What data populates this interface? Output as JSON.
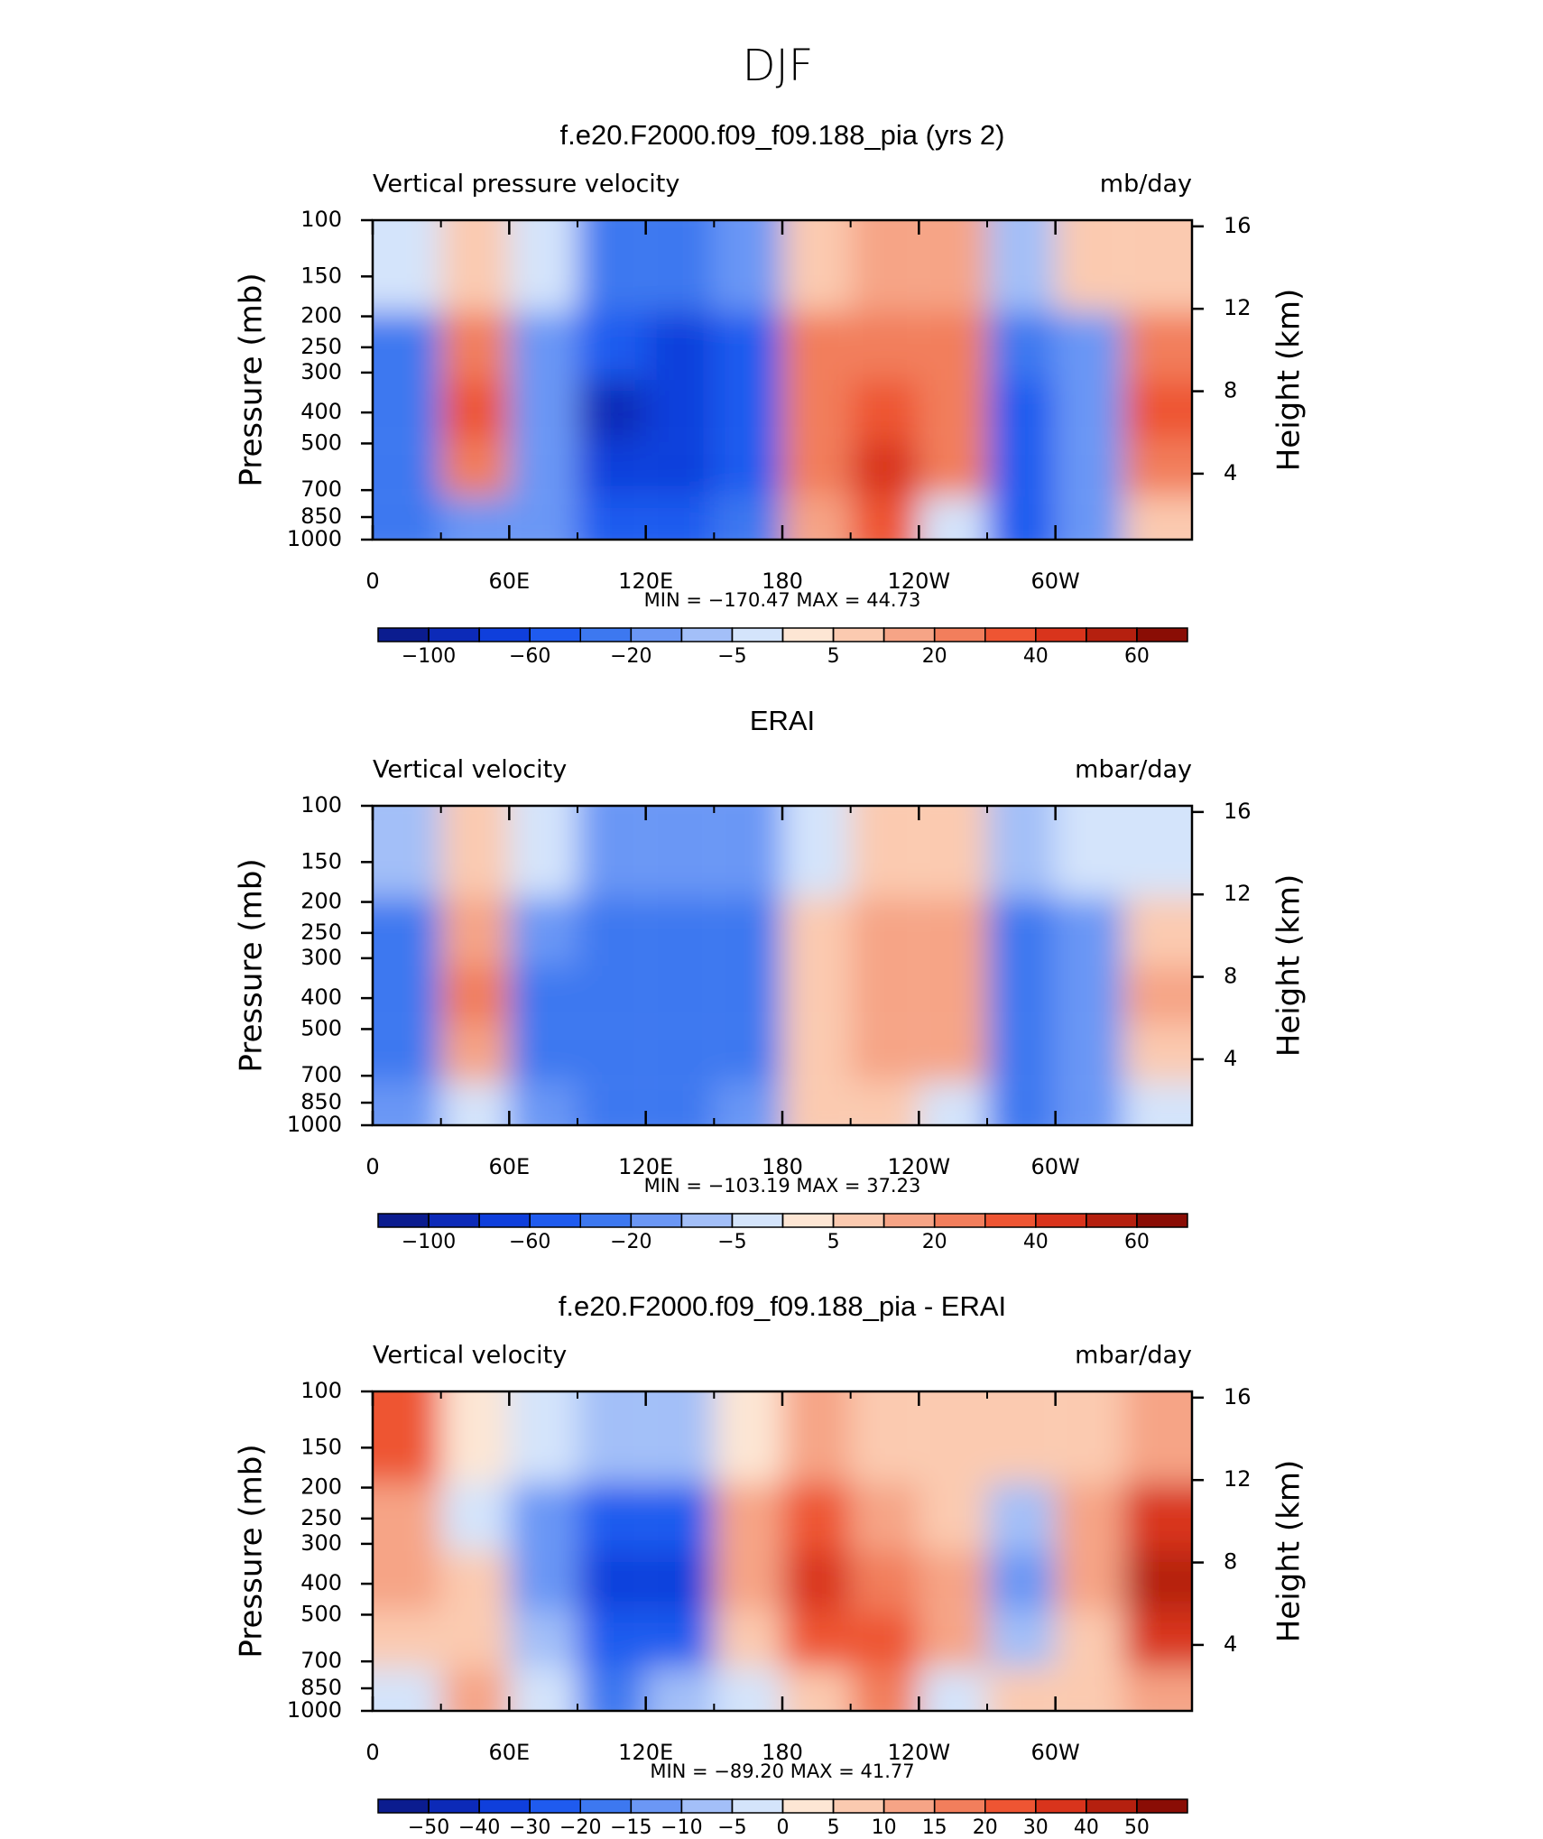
{
  "title": "DJF",
  "chart_data": [
    {
      "type": "contour",
      "title": "f.e20.F2000.f09_f09.188_pia (yrs 2)",
      "left_label": "Vertical pressure velocity",
      "right_label": "mb/day",
      "min_max": "MIN = −170.47   MAX =   44.73",
      "y_label": "Pressure (mb)",
      "y2_label": "Height (km)",
      "xlim": [
        0,
        360
      ],
      "xticks": [
        0,
        {
          "value": 60,
          "label": "60E"
        },
        {
          "value": 120,
          "label": "120E"
        },
        180,
        {
          "value": 240,
          "label": "120W"
        },
        {
          "value": 300,
          "label": "60W"
        }
      ],
      "ylim": [
        1000,
        100
      ],
      "y_scale": "log",
      "yticks": [
        100,
        150,
        200,
        250,
        300,
        400,
        500,
        700,
        850,
        1000
      ],
      "y2lim": [
        0.8,
        16.3
      ],
      "y2ticks": [
        4,
        8,
        12,
        16
      ],
      "field": {
        "lon": [
          15,
          45,
          75,
          105,
          135,
          165,
          195,
          225,
          255,
          285,
          315,
          345
        ],
        "pressure": [
          150,
          250,
          400,
          600,
          900
        ],
        "values": [
          [
            -5,
            -30,
            -40,
            -40,
            -40
          ],
          [
            5,
            20,
            30,
            20,
            -20
          ],
          [
            -5,
            -20,
            -20,
            -20,
            -20
          ],
          [
            -30,
            -60,
            -90,
            -70,
            -50
          ],
          [
            -40,
            -70,
            -80,
            -70,
            -50
          ],
          [
            -20,
            -50,
            -60,
            -50,
            -30
          ],
          [
            5,
            20,
            20,
            20,
            10
          ],
          [
            10,
            20,
            30,
            40,
            30
          ],
          [
            10,
            20,
            20,
            20,
            -5
          ],
          [
            -10,
            -40,
            -50,
            -50,
            -50
          ],
          [
            5,
            -20,
            -20,
            -20,
            -20
          ],
          [
            5,
            20,
            30,
            20,
            5
          ]
        ]
      },
      "colorbar": {
        "levels": [
          -100,
          -80,
          -60,
          -40,
          -20,
          -10,
          -5,
          0,
          5,
          10,
          20,
          30,
          40,
          50,
          60
        ],
        "colors": [
          "#0b1c8f",
          "#0c2ab8",
          "#0f3fdc",
          "#1f5bef",
          "#3d78f0",
          "#6b97f5",
          "#a3bff8",
          "#d4e4fb",
          "#fde6d4",
          "#fbcab0",
          "#f6a486",
          "#f27e5c",
          "#ee5533",
          "#d9341c",
          "#b5200f",
          "#8a0d05"
        ],
        "ticks": [
          {
            "value": -100,
            "label": "−100"
          },
          {
            "value": -60,
            "label": "−60"
          },
          {
            "value": -20,
            "label": "−20"
          },
          {
            "value": -5,
            "label": "−5"
          },
          5,
          20,
          40,
          60
        ]
      }
    },
    {
      "type": "contour",
      "title": "ERAI",
      "left_label": "Vertical velocity",
      "right_label": "mbar/day",
      "min_max": "MIN = −103.19   MAX =   37.23",
      "y_label": "Pressure (mb)",
      "y2_label": "Height (km)",
      "xlim": [
        0,
        360
      ],
      "xticks": [
        0,
        {
          "value": 60,
          "label": "60E"
        },
        {
          "value": 120,
          "label": "120E"
        },
        180,
        {
          "value": 240,
          "label": "120W"
        },
        {
          "value": 300,
          "label": "60W"
        }
      ],
      "ylim": [
        1000,
        100
      ],
      "y_scale": "log",
      "yticks": [
        100,
        150,
        200,
        250,
        300,
        400,
        500,
        700,
        850,
        1000
      ],
      "y2lim": [
        0.8,
        16.3
      ],
      "y2ticks": [
        4,
        8,
        12,
        16
      ],
      "field": {
        "lon": [
          15,
          45,
          75,
          105,
          135,
          165,
          195,
          225,
          255,
          285,
          315,
          345
        ],
        "pressure": [
          150,
          250,
          400,
          600,
          900
        ],
        "values": [
          [
            -10,
            -30,
            -30,
            -30,
            -20
          ],
          [
            5,
            10,
            20,
            10,
            -5
          ],
          [
            -5,
            -20,
            -30,
            -30,
            -20
          ],
          [
            -20,
            -30,
            -40,
            -40,
            -30
          ],
          [
            -20,
            -40,
            -40,
            -40,
            -30
          ],
          [
            -20,
            -30,
            -30,
            -30,
            -20
          ],
          [
            -5,
            5,
            5,
            5,
            5
          ],
          [
            5,
            10,
            10,
            10,
            5
          ],
          [
            5,
            10,
            10,
            10,
            -5
          ],
          [
            -10,
            -30,
            -30,
            -30,
            -30
          ],
          [
            -5,
            -20,
            -20,
            -20,
            -20
          ],
          [
            -5,
            5,
            10,
            5,
            -5
          ]
        ]
      },
      "colorbar": {
        "levels": [
          -100,
          -80,
          -60,
          -40,
          -20,
          -10,
          -5,
          0,
          5,
          10,
          20,
          30,
          40,
          50,
          60
        ],
        "colors": [
          "#0b1c8f",
          "#0c2ab8",
          "#0f3fdc",
          "#1f5bef",
          "#3d78f0",
          "#6b97f5",
          "#a3bff8",
          "#d4e4fb",
          "#fde6d4",
          "#fbcab0",
          "#f6a486",
          "#f27e5c",
          "#ee5533",
          "#d9341c",
          "#b5200f",
          "#8a0d05"
        ],
        "ticks": [
          {
            "value": -100,
            "label": "−100"
          },
          {
            "value": -60,
            "label": "−60"
          },
          {
            "value": -20,
            "label": "−20"
          },
          {
            "value": -5,
            "label": "−5"
          },
          5,
          20,
          40,
          60
        ]
      }
    },
    {
      "type": "contour",
      "title": "f.e20.F2000.f09_f09.188_pia - ERAI",
      "left_label": "Vertical velocity",
      "right_label": "mbar/day",
      "min_max": "MIN = −89.20   MAX =   41.77",
      "y_label": "Pressure (mb)",
      "y2_label": "Height (km)",
      "xlim": [
        0,
        360
      ],
      "xticks": [
        0,
        {
          "value": 60,
          "label": "60E"
        },
        {
          "value": 120,
          "label": "120E"
        },
        180,
        {
          "value": 240,
          "label": "120W"
        },
        {
          "value": 300,
          "label": "60W"
        }
      ],
      "ylim": [
        1000,
        100
      ],
      "y_scale": "log",
      "yticks": [
        100,
        150,
        200,
        250,
        300,
        400,
        500,
        700,
        850,
        1000
      ],
      "y2lim": [
        0.8,
        16.3
      ],
      "y2ticks": [
        4,
        8,
        12,
        16
      ],
      "field": {
        "lon": [
          15,
          45,
          75,
          105,
          135,
          165,
          195,
          225,
          255,
          285,
          315,
          345
        ],
        "pressure": [
          150,
          250,
          400,
          600,
          900
        ],
        "values": [
          [
            20,
            10,
            10,
            5,
            -5
          ],
          [
            0,
            -5,
            5,
            5,
            10
          ],
          [
            -5,
            -15,
            -15,
            -10,
            -5
          ],
          [
            -10,
            -30,
            -40,
            -30,
            -20
          ],
          [
            -10,
            -30,
            -40,
            -30,
            -10
          ],
          [
            0,
            10,
            10,
            5,
            -5
          ],
          [
            10,
            20,
            30,
            20,
            5
          ],
          [
            5,
            10,
            15,
            20,
            15
          ],
          [
            5,
            5,
            10,
            10,
            -5
          ],
          [
            5,
            -10,
            -15,
            -10,
            5
          ],
          [
            5,
            10,
            10,
            5,
            5
          ],
          [
            10,
            30,
            40,
            30,
            10
          ]
        ]
      },
      "colorbar": {
        "levels": [
          -50,
          -40,
          -30,
          -20,
          -15,
          -10,
          -5,
          0,
          5,
          10,
          15,
          20,
          30,
          40,
          50
        ],
        "colors": [
          "#0b1c8f",
          "#0c2ab8",
          "#0f3fdc",
          "#1f5bef",
          "#3d78f0",
          "#6b97f5",
          "#a3bff8",
          "#d4e4fb",
          "#fde6d4",
          "#fbcab0",
          "#f6a486",
          "#f27e5c",
          "#ee5533",
          "#d9341c",
          "#b5200f",
          "#8a0d05"
        ],
        "ticks": [
          {
            "value": -50,
            "label": "−50"
          },
          {
            "value": -40,
            "label": "−40"
          },
          {
            "value": -30,
            "label": "−30"
          },
          {
            "value": -20,
            "label": "−20"
          },
          {
            "value": -15,
            "label": "−15"
          },
          {
            "value": -10,
            "label": "−10"
          },
          {
            "value": -5,
            "label": "−5"
          },
          0,
          5,
          10,
          15,
          20,
          30,
          40,
          50
        ]
      }
    }
  ]
}
